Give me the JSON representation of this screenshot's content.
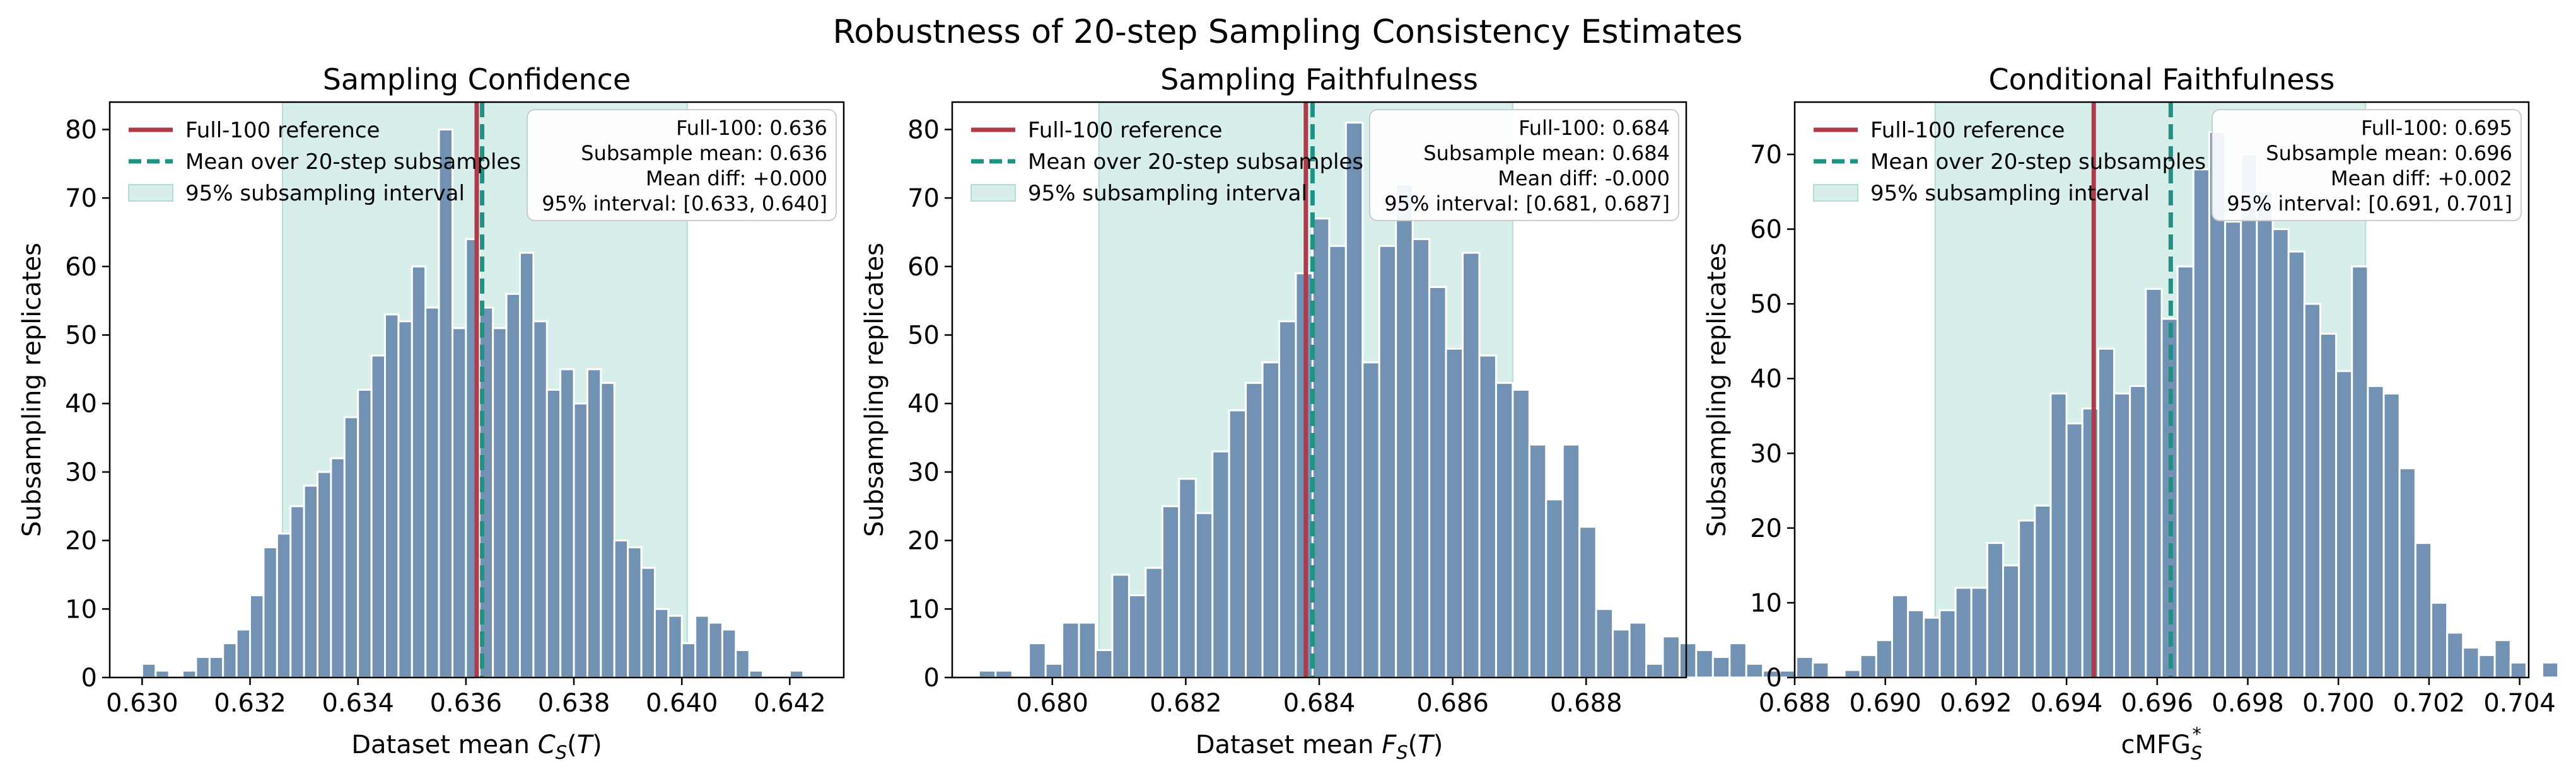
{
  "figure": {
    "title": "Robustness of 20-step Sampling Consistency Estimates"
  },
  "colors": {
    "bar": "#7292b4",
    "bar_edge": "#ffffff",
    "reference": "#b03a48",
    "mean": "#1c9384",
    "interval_fill": "#d8eeeb",
    "interval_edge": "#b4dcd6"
  },
  "legend_entries": [
    "Full-100 reference",
    "Mean over 20-step subsamples",
    "95% subsampling interval"
  ],
  "chart_data": [
    {
      "type": "bar",
      "title": "Sampling Confidence",
      "xlabel_parts": [
        "Dataset mean ",
        "C",
        "S",
        "(",
        "T",
        ")"
      ],
      "ylabel": "Subsampling replicates",
      "xlim": [
        0.6294,
        0.643
      ],
      "ylim": [
        0,
        84
      ],
      "xticks": [
        "0.630",
        "0.632",
        "0.634",
        "0.636",
        "0.638",
        "0.640",
        "0.642"
      ],
      "yticks": [
        "0",
        "10",
        "20",
        "30",
        "40",
        "50",
        "60",
        "70",
        "80"
      ],
      "bin_start": 0.63,
      "bin_width": 0.00025,
      "values": [
        2,
        1,
        0,
        1,
        3,
        3,
        5,
        7,
        12,
        19,
        21,
        25,
        28,
        30,
        32,
        38,
        42,
        47,
        53,
        52,
        60,
        54,
        80,
        51,
        64,
        54,
        51,
        56,
        62,
        52,
        42,
        45,
        40,
        45,
        43,
        20,
        19,
        16,
        10,
        9,
        5,
        9,
        8,
        7,
        4,
        1,
        0,
        0,
        1
      ],
      "reference": 0.6362,
      "mean": 0.6363,
      "interval": [
        0.6326,
        0.6401
      ],
      "stats": [
        "Full-100: 0.636",
        "Subsample mean: 0.636",
        "Mean diff: +0.000",
        "95% interval: [0.633, 0.640]"
      ]
    },
    {
      "type": "bar",
      "title": "Sampling Faithfulness",
      "xlabel_parts": [
        "Dataset mean ",
        "F",
        "S",
        "(",
        "T",
        ")"
      ],
      "ylabel": "Subsampling replicates",
      "xlim": [
        0.6785,
        0.6895
      ],
      "ylim": [
        0,
        84
      ],
      "xticks": [
        "0.680",
        "0.682",
        "0.684",
        "0.686",
        "0.688"
      ],
      "yticks": [
        "0",
        "10",
        "20",
        "30",
        "40",
        "50",
        "60",
        "70",
        "80"
      ],
      "bin_start": 0.6789,
      "bin_width": 0.00025,
      "values": [
        1,
        1,
        0,
        5,
        2,
        8,
        8,
        4,
        15,
        12,
        16,
        25,
        29,
        24,
        33,
        39,
        43,
        46,
        52,
        59,
        67,
        63,
        81,
        46,
        63,
        72,
        64,
        57,
        48,
        62,
        47,
        43,
        42,
        34,
        26,
        34,
        22,
        10,
        7,
        8,
        2,
        6,
        5,
        4,
        3,
        5,
        2,
        1,
        1,
        3
      ],
      "reference": 0.6838,
      "mean": 0.6839,
      "interval": [
        0.6807,
        0.6869
      ],
      "stats": [
        "Full-100: 0.684",
        "Subsample mean: 0.684",
        "Mean diff: -0.000",
        "95% interval: [0.681, 0.687]"
      ]
    },
    {
      "type": "bar",
      "title": "Conditional Faithfulness",
      "xlabel_parts": [
        "cMFG",
        "S",
        "*"
      ],
      "ylabel": "Subsampling replicates",
      "xlim": [
        0.688,
        0.7042
      ],
      "ylim": [
        0,
        77
      ],
      "xticks": [
        "0.688",
        "0.690",
        "0.692",
        "0.694",
        "0.696",
        "0.698",
        "0.700",
        "0.702",
        "0.704"
      ],
      "yticks": [
        "0",
        "10",
        "20",
        "30",
        "40",
        "50",
        "60",
        "70"
      ],
      "bin_start": 0.6884,
      "bin_width": 0.00035,
      "values": [
        2,
        0,
        1,
        3,
        5,
        11,
        9,
        8,
        9,
        12,
        12,
        18,
        15,
        21,
        23,
        38,
        34,
        36,
        44,
        38,
        39,
        52,
        48,
        55,
        68,
        73,
        61,
        70,
        65,
        60,
        57,
        50,
        46,
        41,
        55,
        39,
        38,
        28,
        18,
        10,
        6,
        4,
        3,
        5,
        2,
        0,
        2
      ],
      "reference": 0.6946,
      "mean": 0.6963,
      "interval": [
        0.6911,
        0.7006
      ],
      "stats": [
        "Full-100: 0.695",
        "Subsample mean: 0.696",
        "Mean diff: +0.002",
        "95% interval: [0.691, 0.701]"
      ]
    }
  ]
}
